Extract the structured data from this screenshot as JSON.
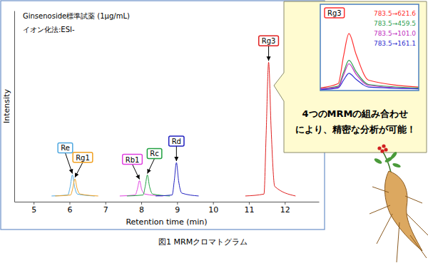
{
  "chart_data": [
    {
      "type": "line",
      "title": "Ginsenoside標準試薬 (1μg/mL)",
      "subtitle": "イオン化法:ESI-",
      "x_label": "Retention time (min)",
      "y_label": "Intensity",
      "caption": "図1 MRMクロマトグラム",
      "xlim": [
        4.46,
        12.95
      ],
      "xticks": [
        5,
        6,
        7,
        8,
        9,
        10,
        11,
        12
      ],
      "ylim": [
        0,
        100
      ],
      "tick_labels": "x",
      "series": [
        {
          "name": "Re",
          "color": "#4fa8e0",
          "x": [
            5.5,
            5.95,
            6.02,
            6.08,
            6.14,
            6.22,
            6.7
          ],
          "values": [
            3,
            3.5,
            8,
            14,
            8,
            4,
            3
          ]
        },
        {
          "name": "Rg1",
          "color": "#f0a020",
          "x": [
            5.6,
            6.03,
            6.09,
            6.15,
            6.21,
            6.3,
            6.8
          ],
          "values": [
            3,
            3.5,
            7,
            12,
            7,
            4,
            3
          ]
        },
        {
          "name": "Rb1",
          "color": "#e040e0",
          "x": [
            7.4,
            7.83,
            7.89,
            7.95,
            8.01,
            8.1,
            8.6
          ],
          "values": [
            3,
            3.5,
            6.5,
            11,
            6.5,
            4,
            3
          ]
        },
        {
          "name": "Rc",
          "color": "#20a040",
          "x": [
            7.6,
            8.05,
            8.11,
            8.17,
            8.23,
            8.32,
            8.8
          ],
          "values": [
            3,
            3.5,
            8,
            14,
            8,
            4,
            3
          ]
        },
        {
          "name": "Rd",
          "color": "#2020c0",
          "x": [
            8.4,
            8.86,
            8.92,
            8.98,
            9.04,
            9.13,
            9.6
          ],
          "values": [
            3,
            3.5,
            11,
            20.5,
            11,
            4.5,
            3
          ]
        },
        {
          "name": "Rg3",
          "color": "#e02020",
          "x": [
            10.9,
            11.42,
            11.48,
            11.55,
            11.62,
            11.72,
            12.3
          ],
          "values": [
            3,
            4,
            35,
            73,
            38,
            8,
            3
          ]
        }
      ]
    },
    {
      "type": "line",
      "title": "Rg3",
      "annotations": [
        "4つのMRMの組み合わせ",
        "により、精密な分析が可能！"
      ],
      "xlim": [
        11.35,
        11.9
      ],
      "ylim": [
        0,
        100
      ],
      "tick_labels": false,
      "legend": "upper right",
      "series": [
        {
          "name": "783.5→621.6",
          "color": "#ff3030",
          "x": [
            11.35,
            11.45,
            11.48,
            11.51,
            11.55,
            11.62,
            11.9
          ],
          "values": [
            3,
            8,
            40,
            66,
            42,
            12,
            4
          ]
        },
        {
          "name": "783.5→459.5",
          "color": "#30a050",
          "x": [
            11.35,
            11.45,
            11.48,
            11.51,
            11.55,
            11.62,
            11.9
          ],
          "values": [
            2,
            5,
            21,
            35,
            22,
            7,
            3
          ]
        },
        {
          "name": "783.5→101.0",
          "color": "#c030c0",
          "x": [
            11.35,
            11.45,
            11.48,
            11.51,
            11.55,
            11.62,
            11.9
          ],
          "values": [
            2,
            4,
            18,
            31,
            19,
            6,
            2
          ]
        },
        {
          "name": "783.5→161.1",
          "color": "#3030d0",
          "x": [
            11.35,
            11.45,
            11.48,
            11.51,
            11.55,
            11.62,
            11.9
          ],
          "values": [
            1,
            3,
            12,
            20,
            13,
            4,
            2
          ]
        }
      ]
    }
  ]
}
